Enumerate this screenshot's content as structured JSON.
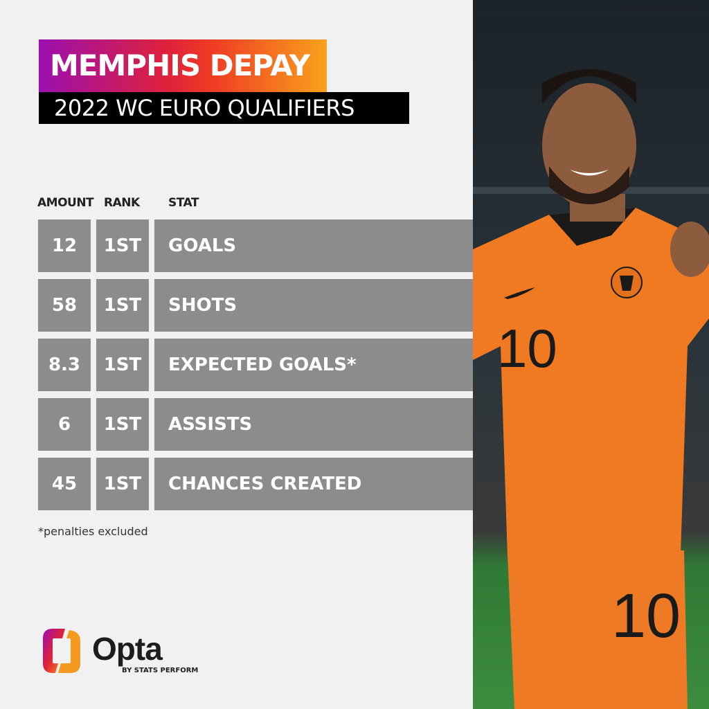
{
  "header": {
    "title": "MEMPHIS DEPAY",
    "subtitle": "2022 WC EURO QUALIFIERS"
  },
  "table": {
    "columns": [
      "AMOUNT",
      "RANK",
      "STAT"
    ],
    "rows": [
      {
        "amount": "12",
        "rank": "1ST",
        "stat": "GOALS"
      },
      {
        "amount": "58",
        "rank": "1ST",
        "stat": "SHOTS"
      },
      {
        "amount": "8.3",
        "rank": "1ST",
        "stat": "EXPECTED GOALS*"
      },
      {
        "amount": "6",
        "rank": "1ST",
        "stat": "ASSISTS"
      },
      {
        "amount": "45",
        "rank": "1ST",
        "stat": "CHANCES CREATED"
      }
    ]
  },
  "footnote": "*penalties excluded",
  "logo": {
    "name": "Opta",
    "tagline": "BY STATS PERFORM"
  },
  "photo": {
    "jersey_number": "10"
  },
  "colors": {
    "row_bg": "#8c8c8c",
    "gradient_start": "#9c0fb0",
    "gradient_end": "#f9a21c",
    "jersey": "#f07a22"
  }
}
